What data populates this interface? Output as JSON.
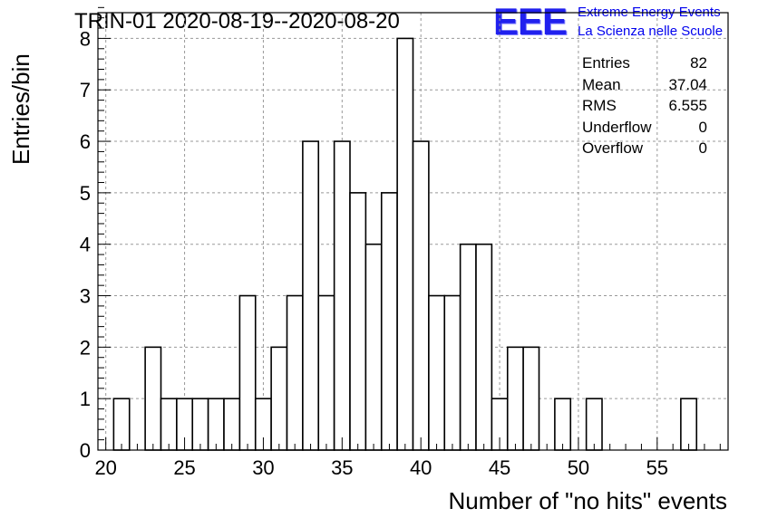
{
  "title": "TRIN-01 2020-08-19--2020-08-20",
  "logo": {
    "mark": "EEE",
    "line1": "Extreme Energy Events",
    "line2": "La Scienza nelle Scuole"
  },
  "stats": [
    {
      "label": "Entries",
      "value": "82"
    },
    {
      "label": "Mean",
      "value": "37.04"
    },
    {
      "label": "RMS",
      "value": "6.555"
    },
    {
      "label": "Underflow",
      "value": "0"
    },
    {
      "label": "Overflow",
      "value": "0"
    }
  ],
  "chart_data": {
    "type": "bar",
    "title": "TRIN-01 2020-08-19--2020-08-20",
    "xlabel": "Number of \"no hits\" events",
    "ylabel": "Entries/bin",
    "xlim": [
      19.5,
      59.5
    ],
    "ylim": [
      0,
      8.5
    ],
    "xticks": [
      20,
      25,
      30,
      35,
      40,
      45,
      50,
      55
    ],
    "yticks": [
      0,
      1,
      2,
      3,
      4,
      5,
      6,
      7,
      8
    ],
    "grid": true,
    "bin_width": 1,
    "bin_centers": [
      21,
      23,
      24,
      25,
      26,
      27,
      28,
      29,
      30,
      31,
      32,
      33,
      34,
      35,
      36,
      37,
      38,
      39,
      40,
      41,
      42,
      43,
      44,
      45,
      46,
      47,
      49,
      51,
      57
    ],
    "values": [
      1,
      2,
      1,
      1,
      1,
      1,
      1,
      3,
      1,
      2,
      3,
      6,
      3,
      6,
      5,
      4,
      5,
      8,
      6,
      3,
      3,
      4,
      4,
      1,
      2,
      2,
      1,
      1,
      1
    ],
    "colors": {
      "bar_fill": "#ffffff",
      "bar_stroke": "#000000",
      "grid": "#999999"
    }
  }
}
